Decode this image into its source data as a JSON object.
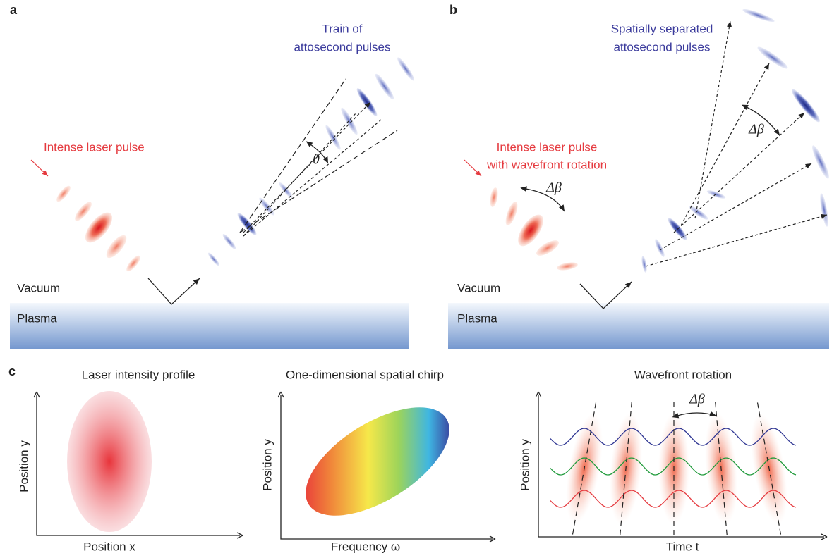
{
  "panel_a": {
    "label": "a",
    "pulses_lines": [
      "Train of",
      "attosecond pulses"
    ],
    "laser_label": "Intense laser pulse",
    "angle": "θ",
    "vacuum": "Vacuum",
    "plasma": "Plasma"
  },
  "panel_b": {
    "label": "b",
    "pulses_lines": [
      "Spatially separated",
      "attosecond pulses"
    ],
    "laser_lines": [
      "Intense laser pulse",
      "with wavefront rotation"
    ],
    "rotation_angle": "Δβ",
    "separation_angle": "Δβ",
    "vacuum": "Vacuum",
    "plasma": "Plasma"
  },
  "panel_c": {
    "label": "c",
    "plots": [
      {
        "title": "Laser intensity profile",
        "y_label": "Position y",
        "x_label": "Position x"
      },
      {
        "title": "One-dimensional spatial chirp",
        "y_label": "Position y",
        "x_label": "Frequency ω"
      },
      {
        "title": "Wavefront rotation",
        "y_label": "Position y",
        "x_label": "Time t",
        "angle": "Δβ"
      }
    ]
  }
}
